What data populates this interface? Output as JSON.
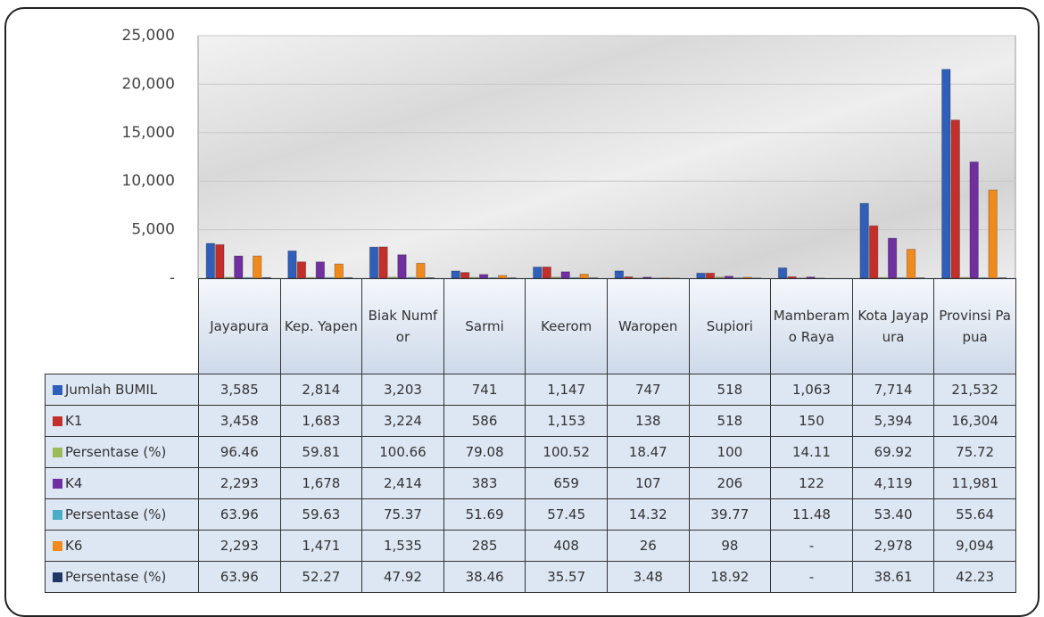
{
  "chart_data": {
    "type": "bar",
    "categories": [
      "Jayapura",
      "Kep. Yapen",
      "Biak Numfor",
      "Sarmi",
      "Keerom",
      "Waropen",
      "Supiori",
      "Mamberamo Raya",
      "Kota Jayapura",
      "Provinsi Papua"
    ],
    "ylim": [
      0,
      25000
    ],
    "yticks": [
      {
        "value": 0,
        "label": "-"
      },
      {
        "value": 5000,
        "label": "5,000"
      },
      {
        "value": 10000,
        "label": "10,000"
      },
      {
        "value": 15000,
        "label": "15,000"
      },
      {
        "value": 20000,
        "label": "20,000"
      },
      {
        "value": 25000,
        "label": "25,000"
      }
    ],
    "grid": true,
    "series": [
      {
        "name": "Jumlah BUMIL",
        "color": "#2f5fb8",
        "values": [
          3585,
          2814,
          3203,
          741,
          1147,
          747,
          518,
          1063,
          7714,
          21532
        ],
        "value_labels": [
          "3,585",
          "2,814",
          "3,203",
          "741",
          "1,147",
          "747",
          "518",
          "1,063",
          "7,714",
          "21,532"
        ]
      },
      {
        "name": "K1",
        "color": "#c3302c",
        "values": [
          3458,
          1683,
          3224,
          586,
          1153,
          138,
          518,
          150,
          5394,
          16304
        ],
        "value_labels": [
          "3,458",
          "1,683",
          "3,224",
          "586",
          "1,153",
          "138",
          "518",
          "150",
          "5,394",
          "16,304"
        ]
      },
      {
        "name": "Persentase (%)",
        "color": "#9bbb59",
        "values": [
          96.46,
          59.81,
          100.66,
          79.08,
          100.52,
          18.47,
          100,
          14.11,
          69.92,
          75.72
        ],
        "value_labels": [
          "96.46",
          "59.81",
          "100.66",
          "79.08",
          "100.52",
          "18.47",
          "100",
          "14.11",
          "69.92",
          "75.72"
        ]
      },
      {
        "name": "K4",
        "color": "#7030a0",
        "values": [
          2293,
          1678,
          2414,
          383,
          659,
          107,
          206,
          122,
          4119,
          11981
        ],
        "value_labels": [
          "2,293",
          "1,678",
          "2,414",
          "383",
          "659",
          "107",
          "206",
          "122",
          "4,119",
          "11,981"
        ]
      },
      {
        "name": "Persentase (%)",
        "color": "#4bacc6",
        "values": [
          63.96,
          59.63,
          75.37,
          51.69,
          57.45,
          14.32,
          39.77,
          11.48,
          53.4,
          55.64
        ],
        "value_labels": [
          "63.96",
          "59.63",
          "75.37",
          "51.69",
          "57.45",
          "14.32",
          "39.77",
          "11.48",
          "53.40",
          "55.64"
        ]
      },
      {
        "name": "K6",
        "color": "#f08a1c",
        "values": [
          2293,
          1471,
          1535,
          285,
          408,
          26,
          98,
          null,
          2978,
          9094
        ],
        "value_labels": [
          "2,293",
          "1,471",
          "1,535",
          "285",
          "408",
          "26",
          "98",
          "-",
          "2,978",
          "9,094"
        ]
      },
      {
        "name": "Persentase (%)",
        "color": "#1f3864",
        "values": [
          63.96,
          52.27,
          47.92,
          38.46,
          35.57,
          3.48,
          18.92,
          null,
          38.61,
          42.23
        ],
        "value_labels": [
          "63.96",
          "52.27",
          "47.92",
          "38.46",
          "35.57",
          "3.48",
          "18.92",
          "-",
          "38.61",
          "42.23"
        ]
      }
    ]
  }
}
